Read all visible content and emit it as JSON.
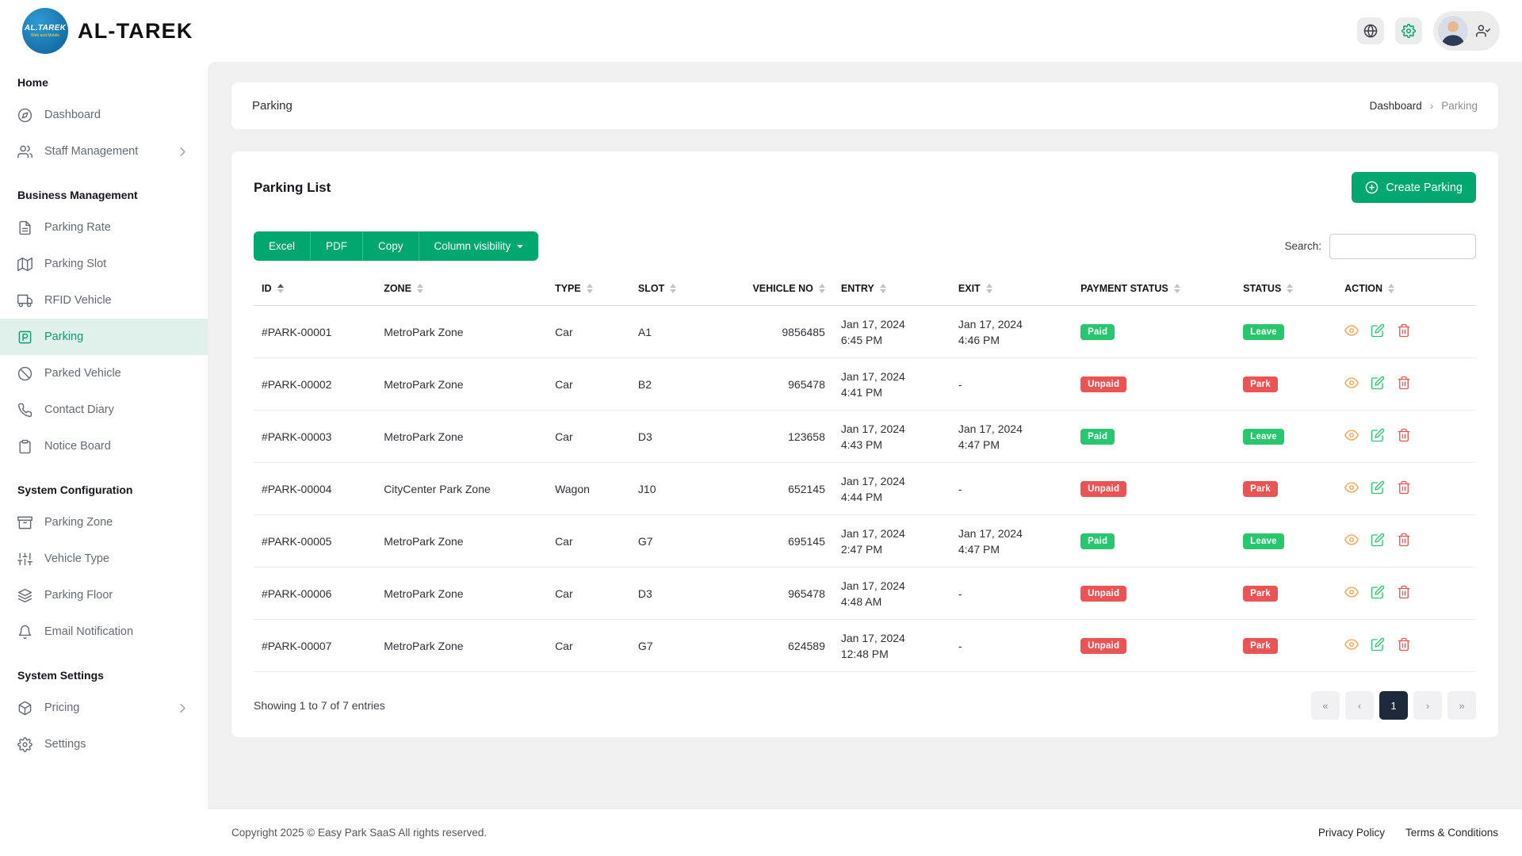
{
  "colors": {
    "primary": "#00a76f",
    "success": "#28c76f",
    "danger": "#ea5455",
    "warning": "#ff9f43",
    "pagination_active": "#1e293b",
    "sidebar_active_bg": "#dff1ea",
    "content_bg": "#f0f0f0"
  },
  "brand": {
    "name": "AL-TAREK",
    "logo_text": "AL.TAREK",
    "logo_subtext": "Web and Mobile"
  },
  "header": {
    "icons": [
      "translate-icon",
      "gear-icon",
      "avatar",
      "user-check-icon"
    ]
  },
  "sidebar": {
    "sections": [
      {
        "title": "Home",
        "items": [
          {
            "label": "Dashboard",
            "icon": "dashboard"
          },
          {
            "label": "Staff Management",
            "icon": "users",
            "has_submenu": true
          }
        ]
      },
      {
        "title": "Business Management",
        "items": [
          {
            "label": "Parking Rate",
            "icon": "file"
          },
          {
            "label": "Parking Slot",
            "icon": "map"
          },
          {
            "label": "RFID Vehicle",
            "icon": "car"
          },
          {
            "label": "Parking",
            "icon": "parking",
            "active": true
          },
          {
            "label": "Parked Vehicle",
            "icon": "ban"
          },
          {
            "label": "Contact Diary",
            "icon": "phone"
          },
          {
            "label": "Notice Board",
            "icon": "clipboard"
          }
        ]
      },
      {
        "title": "System Configuration",
        "items": [
          {
            "label": "Parking Zone",
            "icon": "archive"
          },
          {
            "label": "Vehicle Type",
            "icon": "sliders"
          },
          {
            "label": "Parking Floor",
            "icon": "layers"
          },
          {
            "label": "Email Notification",
            "icon": "bell"
          }
        ]
      },
      {
        "title": "System Settings",
        "items": [
          {
            "label": "Pricing",
            "icon": "box",
            "has_submenu": true
          },
          {
            "label": "Settings",
            "icon": "gear"
          }
        ]
      }
    ]
  },
  "breadcrumb": {
    "title": "Parking",
    "items": [
      "Dashboard",
      "Parking"
    ],
    "separator": "›"
  },
  "parking_list": {
    "title": "Parking List",
    "create_button": "Create Parking",
    "export_buttons": [
      "Excel",
      "PDF",
      "Copy",
      "Column visibility"
    ],
    "search": {
      "label": "Search:",
      "value": ""
    },
    "table": {
      "headers": [
        "ID",
        "ZONE",
        "TYPE",
        "SLOT",
        "VEHICLE NO",
        "ENTRY",
        "EXIT",
        "PAYMENT STATUS",
        "STATUS",
        "ACTION"
      ],
      "sorted_column": "ID",
      "sort_direction": "asc",
      "rows": [
        {
          "id": "#PARK-00001",
          "zone": "MetroPark Zone",
          "type": "Car",
          "slot": "A1",
          "vehicle_no": "9856485",
          "entry_date": "Jan 17, 2024",
          "entry_time": "6:45 PM",
          "exit_date": "Jan 17, 2024",
          "exit_time": "4:46 PM",
          "payment_status": "Paid",
          "payment_variant": "success",
          "status": "Leave",
          "status_variant": "success"
        },
        {
          "id": "#PARK-00002",
          "zone": "MetroPark Zone",
          "type": "Car",
          "slot": "B2",
          "vehicle_no": "965478",
          "entry_date": "Jan 17, 2024",
          "entry_time": "4:41 PM",
          "exit_date": "-",
          "exit_time": "",
          "payment_status": "Unpaid",
          "payment_variant": "danger",
          "status": "Park",
          "status_variant": "danger"
        },
        {
          "id": "#PARK-00003",
          "zone": "MetroPark Zone",
          "type": "Car",
          "slot": "D3",
          "vehicle_no": "123658",
          "entry_date": "Jan 17, 2024",
          "entry_time": "4:43 PM",
          "exit_date": "Jan 17, 2024",
          "exit_time": "4:47 PM",
          "payment_status": "Paid",
          "payment_variant": "success",
          "status": "Leave",
          "status_variant": "success"
        },
        {
          "id": "#PARK-00004",
          "zone": "CityCenter Park Zone",
          "type": "Wagon",
          "slot": "J10",
          "vehicle_no": "652145",
          "entry_date": "Jan 17, 2024",
          "entry_time": "4:44 PM",
          "exit_date": "-",
          "exit_time": "",
          "payment_status": "Unpaid",
          "payment_variant": "danger",
          "status": "Park",
          "status_variant": "danger"
        },
        {
          "id": "#PARK-00005",
          "zone": "MetroPark Zone",
          "type": "Car",
          "slot": "G7",
          "vehicle_no": "695145",
          "entry_date": "Jan 17, 2024",
          "entry_time": "2:47 PM",
          "exit_date": "Jan 17, 2024",
          "exit_time": "4:47 PM",
          "payment_status": "Paid",
          "payment_variant": "success",
          "status": "Leave",
          "status_variant": "success"
        },
        {
          "id": "#PARK-00006",
          "zone": "MetroPark Zone",
          "type": "Car",
          "slot": "D3",
          "vehicle_no": "965478",
          "entry_date": "Jan 17, 2024",
          "entry_time": "4:48 AM",
          "exit_date": "-",
          "exit_time": "",
          "payment_status": "Unpaid",
          "payment_variant": "danger",
          "status": "Park",
          "status_variant": "danger"
        },
        {
          "id": "#PARK-00007",
          "zone": "MetroPark Zone",
          "type": "Car",
          "slot": "G7",
          "vehicle_no": "624589",
          "entry_date": "Jan 17, 2024",
          "entry_time": "12:48 PM",
          "exit_date": "-",
          "exit_time": "",
          "payment_status": "Unpaid",
          "payment_variant": "danger",
          "status": "Park",
          "status_variant": "danger"
        }
      ]
    },
    "info": "Showing 1 to 7 of 7 entries",
    "pagination": {
      "buttons": [
        "«",
        "‹",
        "1",
        "›",
        "»"
      ],
      "active": "1"
    }
  },
  "footer": {
    "copyright": "Copyright 2025 © Easy Park SaaS All rights reserved.",
    "links": [
      "Privacy Policy",
      "Terms & Conditions"
    ]
  }
}
